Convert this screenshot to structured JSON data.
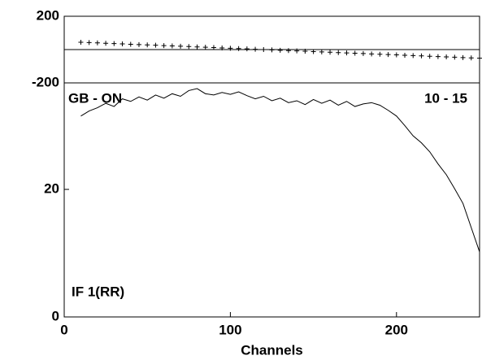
{
  "chart_data": [
    {
      "type": "scatter",
      "color": "#000000",
      "ylim": [
        -200,
        200
      ],
      "yticks": [
        200,
        -200
      ],
      "hline": 0,
      "xlim": [
        0,
        250
      ],
      "x": [
        10,
        15,
        20,
        25,
        30,
        35,
        40,
        45,
        50,
        55,
        60,
        65,
        70,
        75,
        80,
        85,
        90,
        95,
        100,
        105,
        110,
        115,
        120,
        125,
        130,
        135,
        140,
        145,
        150,
        155,
        160,
        165,
        170,
        175,
        180,
        185,
        190,
        195,
        200,
        205,
        210,
        215,
        220,
        225,
        230,
        235,
        240,
        245,
        250
      ],
      "values": [
        44,
        42,
        40,
        38,
        36,
        34,
        32,
        30,
        28,
        26,
        24,
        22,
        20,
        18,
        16,
        14,
        12,
        10,
        8,
        6,
        4,
        2,
        0,
        -2,
        -4,
        -6,
        -8,
        -10,
        -12,
        -14,
        -16,
        -18,
        -20,
        -22,
        -24,
        -26,
        -28,
        -30,
        -32,
        -34,
        -36,
        -38,
        -40,
        -42,
        -44,
        -46,
        -48,
        -50,
        -52
      ]
    },
    {
      "type": "line",
      "color": "#000000",
      "ylim": [
        0,
        36.7
      ],
      "yticks": [
        0,
        20
      ],
      "xlim": [
        0,
        250
      ],
      "xticks": [
        0,
        100,
        200
      ],
      "xlabel": "Channels",
      "annotations": [
        "GB - ON",
        "10 - 15",
        "IF 1(RR)"
      ],
      "x": [
        10,
        15,
        20,
        25,
        30,
        35,
        40,
        45,
        50,
        55,
        60,
        65,
        70,
        75,
        80,
        85,
        90,
        95,
        100,
        105,
        110,
        115,
        120,
        125,
        130,
        135,
        140,
        145,
        150,
        155,
        160,
        165,
        170,
        175,
        180,
        185,
        190,
        195,
        200,
        205,
        210,
        215,
        220,
        225,
        230,
        235,
        240,
        245,
        250
      ],
      "values": [
        31.5,
        32.3,
        32.8,
        33.5,
        33.0,
        34.2,
        33.8,
        34.5,
        34.0,
        34.8,
        34.3,
        35.0,
        34.6,
        35.5,
        35.8,
        35.0,
        34.8,
        35.2,
        34.9,
        35.3,
        34.7,
        34.2,
        34.6,
        33.9,
        34.3,
        33.6,
        33.9,
        33.3,
        34.1,
        33.5,
        34.0,
        33.2,
        33.8,
        33.0,
        33.4,
        33.6,
        33.2,
        32.4,
        31.5,
        30.0,
        28.4,
        27.3,
        25.9,
        24.0,
        22.3,
        20.1,
        17.8,
        14.0,
        10.2
      ]
    }
  ]
}
